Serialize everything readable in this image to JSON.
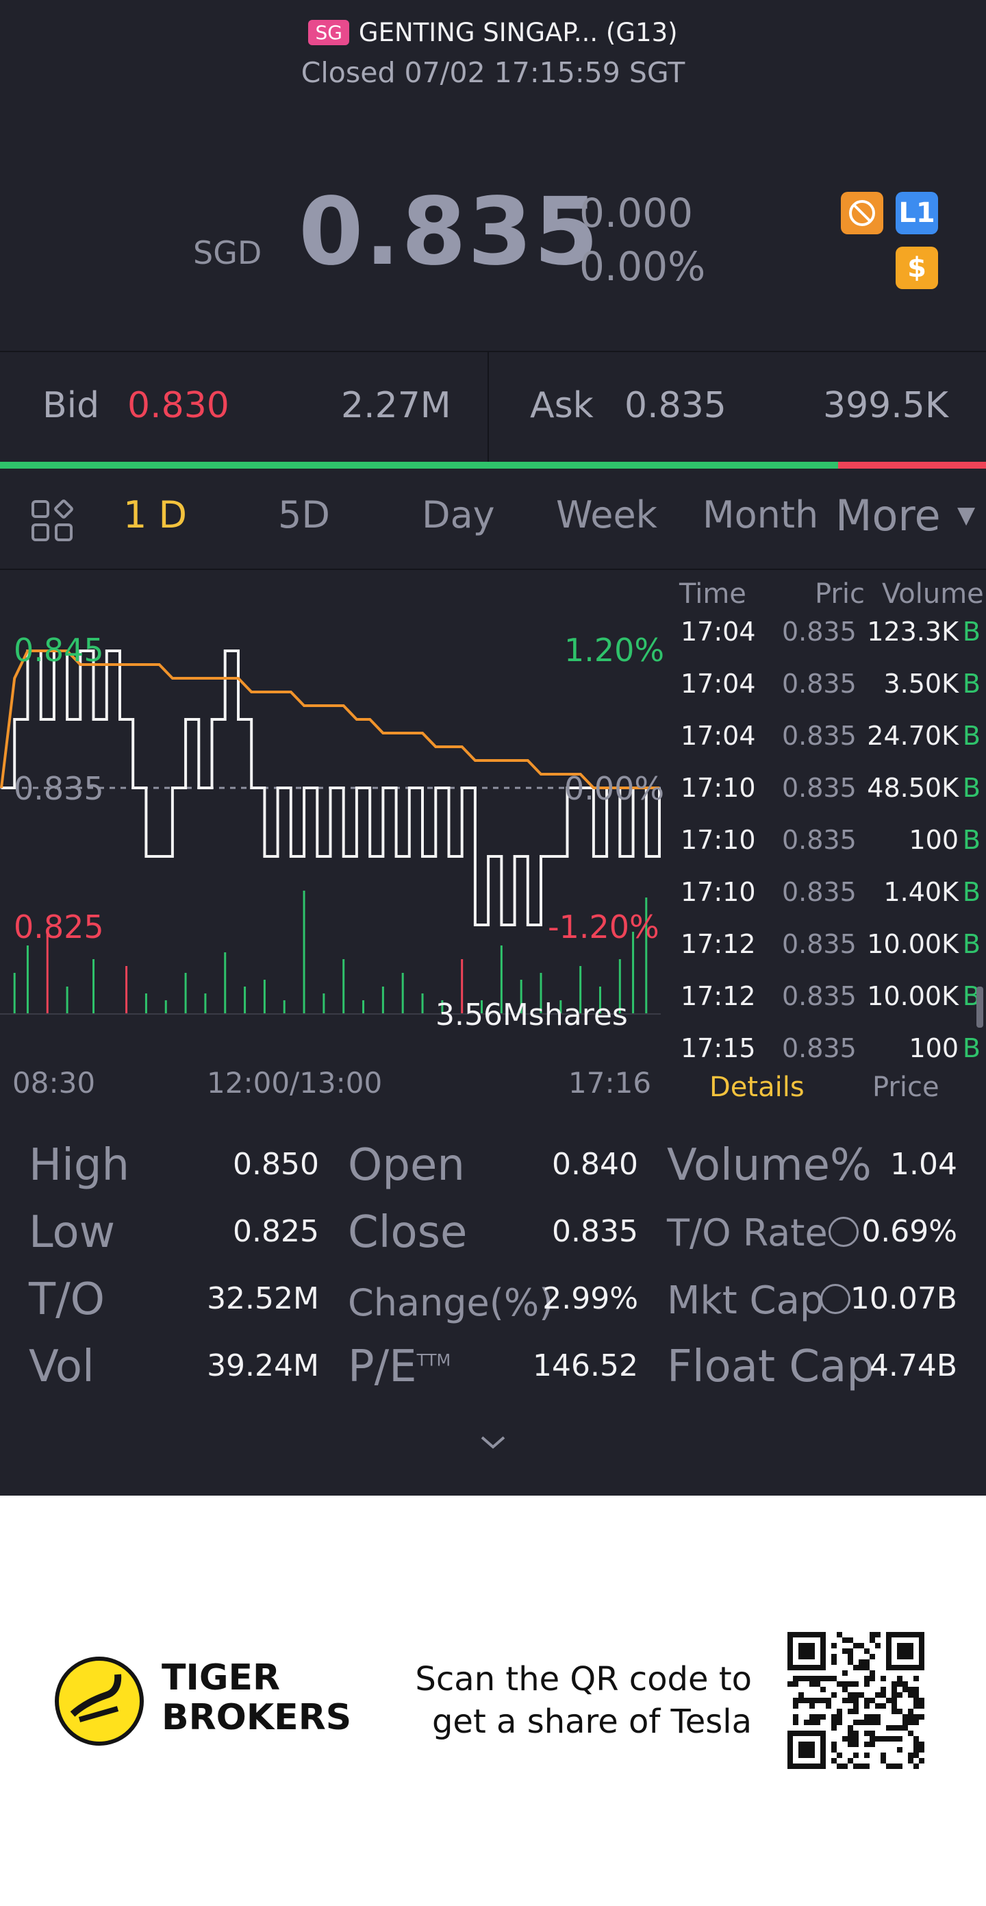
{
  "header": {
    "market_badge": "SG",
    "stock_name": "GENTING SINGAP... (G13)",
    "status": "Closed 07/02 17:15:59 SGT"
  },
  "quote": {
    "currency": "SGD",
    "last_price": "0.835",
    "change": "0.000",
    "change_pct": "0.00%",
    "badges": [
      "no-short-icon",
      "L1",
      "$"
    ]
  },
  "bid_ask": {
    "bid_label": "Bid",
    "bid_price": "0.830",
    "bid_size": "2.27M",
    "ask_label": "Ask",
    "ask_price": "0.835",
    "ask_size": "399.5K",
    "bid_ratio": 0.85
  },
  "tabs": {
    "items": [
      "1 D",
      "5D",
      "Day",
      "Week",
      "Month",
      "More"
    ],
    "active": "1 D"
  },
  "chart_labels": {
    "high_price": "0.845",
    "mid_price": "0.835",
    "low_price": "0.825",
    "high_pct": "1.20%",
    "mid_pct": "0.00%",
    "low_pct": "-1.20%",
    "volume_total": "3.56Mshares",
    "x_start": "08:30",
    "x_mid": "12:00/13:00",
    "x_end": "17:16"
  },
  "chart_data": {
    "type": "line",
    "title": "",
    "xlabel": "",
    "ylabel": "",
    "ylim": [
      0.825,
      0.845
    ],
    "x_ticks": [
      "08:30",
      "12:00/13:00",
      "17:16"
    ],
    "reference_price": 0.835,
    "series": [
      {
        "x": [
          0,
          2,
          4,
          6,
          8,
          10,
          12,
          14,
          16,
          18,
          20,
          22,
          24,
          26,
          28,
          30,
          32,
          34,
          36,
          38,
          40,
          42,
          44,
          46,
          48,
          50,
          52,
          54,
          56,
          58,
          60,
          62,
          64,
          66,
          68,
          70,
          72,
          74,
          76,
          78,
          80,
          82,
          84,
          86,
          88,
          90,
          92,
          94,
          96,
          98,
          100
        ],
        "values": [
          0.835,
          0.843,
          0.845,
          0.845,
          0.845,
          0.845,
          0.844,
          0.844,
          0.844,
          0.844,
          0.844,
          0.844,
          0.844,
          0.843,
          0.843,
          0.843,
          0.843,
          0.843,
          0.843,
          0.842,
          0.842,
          0.842,
          0.842,
          0.841,
          0.841,
          0.841,
          0.841,
          0.84,
          0.84,
          0.839,
          0.839,
          0.839,
          0.839,
          0.838,
          0.838,
          0.838,
          0.837,
          0.837,
          0.837,
          0.837,
          0.837,
          0.836,
          0.836,
          0.836,
          0.836,
          0.835,
          0.835,
          0.835,
          0.835,
          0.835,
          0.835
        ]
      },
      {
        "x": [
          0,
          2,
          4,
          6,
          8,
          10,
          12,
          14,
          16,
          18,
          20,
          22,
          24,
          26,
          28,
          30,
          32,
          34,
          36,
          38,
          40,
          42,
          44,
          46,
          48,
          50,
          52,
          54,
          56,
          58,
          60,
          62,
          64,
          66,
          68,
          70,
          72,
          74,
          76,
          78,
          80,
          82,
          84,
          86,
          88,
          90,
          92,
          94,
          96,
          98,
          100
        ],
        "values": [
          0.835,
          0.84,
          0.845,
          0.84,
          0.845,
          0.84,
          0.845,
          0.84,
          0.845,
          0.84,
          0.835,
          0.83,
          0.83,
          0.835,
          0.84,
          0.835,
          0.84,
          0.845,
          0.84,
          0.835,
          0.83,
          0.835,
          0.83,
          0.835,
          0.83,
          0.835,
          0.83,
          0.835,
          0.83,
          0.835,
          0.83,
          0.835,
          0.83,
          0.835,
          0.83,
          0.835,
          0.825,
          0.83,
          0.825,
          0.83,
          0.825,
          0.83,
          0.83,
          0.835,
          0.835,
          0.83,
          0.835,
          0.83,
          0.835,
          0.83,
          0.835
        ]
      }
    ],
    "volume": {
      "x": [
        2,
        4,
        7,
        10,
        14,
        19,
        22,
        25,
        28,
        31,
        34,
        37,
        40,
        43,
        46,
        49,
        52,
        55,
        58,
        61,
        64,
        67,
        70,
        73,
        76,
        79,
        82,
        85,
        88,
        91,
        94,
        96,
        98
      ],
      "values": [
        0.3,
        0.5,
        0.6,
        0.2,
        0.4,
        0.35,
        0.15,
        0.1,
        0.3,
        0.15,
        0.45,
        0.2,
        0.25,
        0.1,
        0.9,
        0.15,
        0.4,
        0.1,
        0.2,
        0.3,
        0.15,
        0.1,
        0.4,
        0.1,
        0.5,
        0.25,
        0.3,
        0.1,
        0.35,
        0.2,
        0.4,
        0.6,
        0.85
      ],
      "colors": [
        "#2fc26b",
        "#2fc26b",
        "#ef4358",
        "#2fc26b",
        "#2fc26b",
        "#ef4358",
        "#2fc26b",
        "#2fc26b",
        "#2fc26b",
        "#2fc26b",
        "#2fc26b",
        "#2fc26b",
        "#2fc26b",
        "#2fc26b",
        "#2fc26b",
        "#2fc26b",
        "#2fc26b",
        "#2fc26b",
        "#2fc26b",
        "#2fc26b",
        "#2fc26b",
        "#2fc26b",
        "#ef4358",
        "#2fc26b",
        "#2fc26b",
        "#2fc26b",
        "#2fc26b",
        "#2fc26b",
        "#2fc26b",
        "#2fc26b",
        "#2fc26b",
        "#2fc26b",
        "#2fc26b"
      ]
    }
  },
  "trades": {
    "headers": [
      "Time",
      "Pric",
      "Volume"
    ],
    "rows": [
      {
        "time": "17:04",
        "price": "0.835",
        "volume": "123.3K",
        "flag": "B"
      },
      {
        "time": "17:04",
        "price": "0.835",
        "volume": "3.50K",
        "flag": "B"
      },
      {
        "time": "17:04",
        "price": "0.835",
        "volume": "24.70K",
        "flag": "B"
      },
      {
        "time": "17:10",
        "price": "0.835",
        "volume": "48.50K",
        "flag": "B"
      },
      {
        "time": "17:10",
        "price": "0.835",
        "volume": "100",
        "flag": "B"
      },
      {
        "time": "17:10",
        "price": "0.835",
        "volume": "1.40K",
        "flag": "B"
      },
      {
        "time": "17:12",
        "price": "0.835",
        "volume": "10.00K",
        "flag": "B"
      },
      {
        "time": "17:12",
        "price": "0.835",
        "volume": "10.00K",
        "flag": "B"
      },
      {
        "time": "17:15",
        "price": "0.835",
        "volume": "100",
        "flag": "B"
      }
    ],
    "subtabs": [
      "Details",
      "Price"
    ]
  },
  "stats": {
    "col1": [
      {
        "label": "High",
        "value": "0.850"
      },
      {
        "label": "Low",
        "value": "0.825"
      },
      {
        "label": "T/O",
        "value": "32.52M"
      },
      {
        "label": "Vol",
        "value": "39.24M"
      }
    ],
    "col2": [
      {
        "label": "Open",
        "value": "0.840"
      },
      {
        "label": "Close",
        "value": "0.835"
      },
      {
        "label": "Change(%)",
        "value": "2.99%"
      },
      {
        "label": "P/E",
        "sup": "TTM",
        "value": "146.52"
      }
    ],
    "col3": [
      {
        "label": "Volume%",
        "value": "1.04"
      },
      {
        "label": "T/O Rate",
        "value": "0.69%"
      },
      {
        "label": "Mkt Cap",
        "value": "10.07B"
      },
      {
        "label": "Float Cap",
        "value": "4.74B"
      }
    ]
  },
  "footer": {
    "brand_line1": "TIGER",
    "brand_line2": "BROKERS",
    "scan_line1": "Scan the QR code to",
    "scan_line2": "get a share of Tesla"
  },
  "colors": {
    "background": "#21222b",
    "green": "#2fc26b",
    "red": "#ef4358",
    "accent": "#f3c23d",
    "avg_line": "#f0932b"
  }
}
